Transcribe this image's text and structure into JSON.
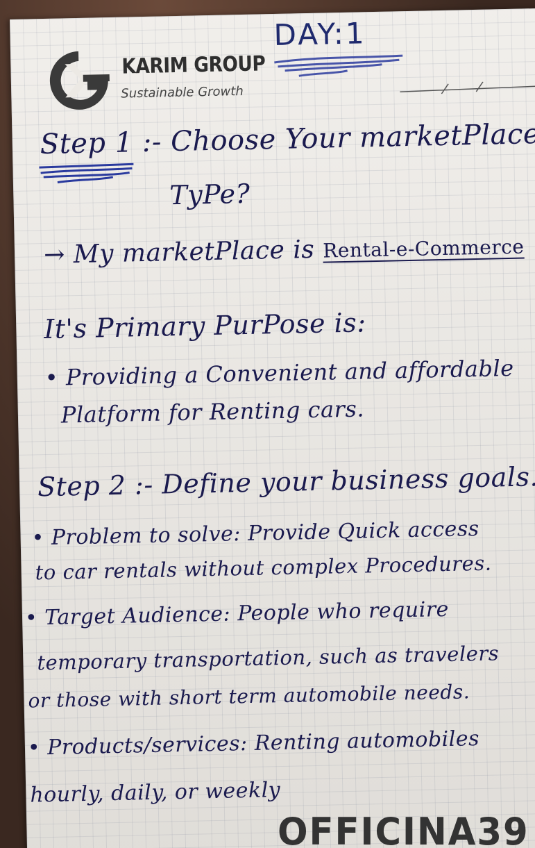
{
  "header": {
    "day": "DAY:1",
    "brand_name": "KARIM GROUP",
    "tagline": "Sustainable Growth",
    "logo_icon": "kg-monogram-icon"
  },
  "step1": {
    "heading": "Step 1 :- Choose Your marketPlace",
    "heading_cont": "TyPe?",
    "answer_prefix": "My marketPlace is",
    "answer_value": "Rental-e-Commerce"
  },
  "purpose": {
    "heading": "It's Primary PurPose is:",
    "bullet_line1": "Providing a Convenient and affordable",
    "bullet_line2": "Platform for Renting cars."
  },
  "step2": {
    "heading": "Step 2 :- Define your business goals.",
    "problem_line1": "Problem to solve: Provide Quick access",
    "problem_line2": "to car rentals without complex Procedures.",
    "audience_line1": "Target Audience: People who require",
    "audience_line2": "temporary transportation, such as travelers",
    "audience_line3": "or those with short term automobile needs.",
    "products_line1": "Products/services: Renting automobiles",
    "products_line2": "hourly, daily, or weekly"
  },
  "watermark": "OFFICINA39",
  "colors": {
    "ink": "#1a1a4e",
    "paper": "#ece9e4",
    "logo": "#3a3a3a"
  }
}
